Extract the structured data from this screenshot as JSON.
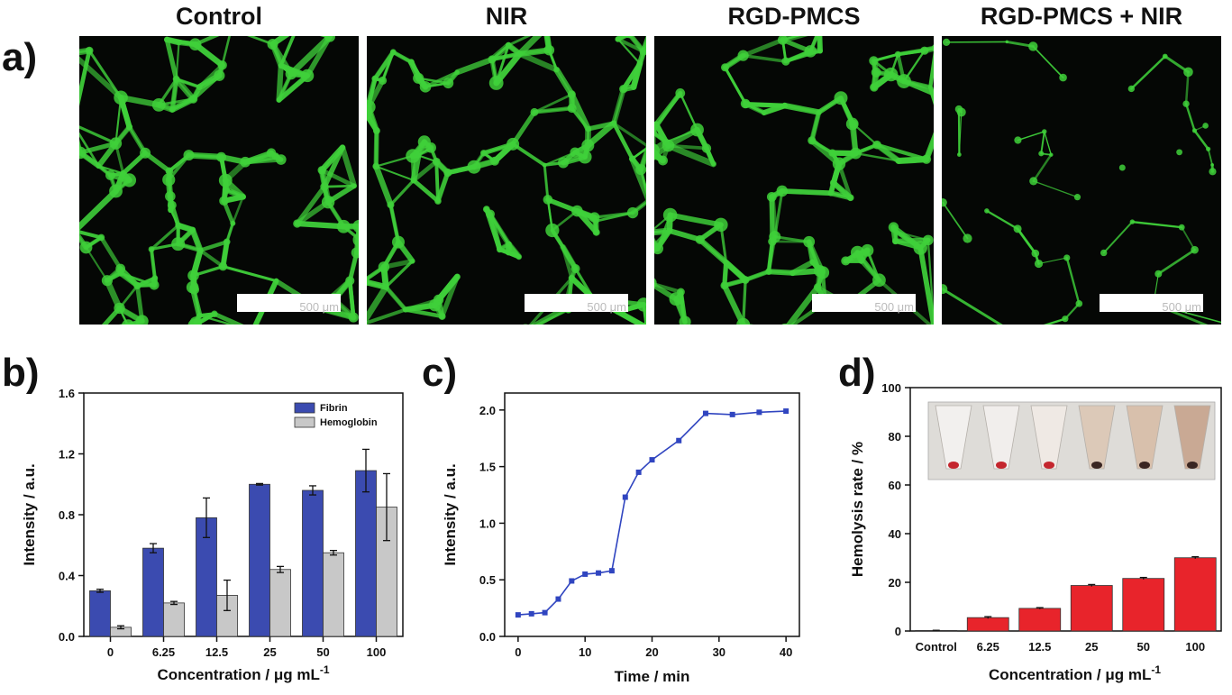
{
  "panel_labels": {
    "a": "a)",
    "b": "b)",
    "c": "c)",
    "d": "d)"
  },
  "micrographs": [
    {
      "title": "Control",
      "scale_text": "500 μm",
      "density": 1.0
    },
    {
      "title": "NIR",
      "scale_text": "500 μm",
      "density": 0.95
    },
    {
      "title": "RGD-PMCS",
      "scale_text": "500 μm",
      "density": 0.98
    },
    {
      "title": "RGD-PMCS + NIR",
      "scale_text": "500 μm",
      "density": 0.35
    }
  ],
  "colors": {
    "fibrin": "#3b4bb0",
    "hemoglobin": "#c8c8c8",
    "line": "#3045c0",
    "hemolysis": "#e8242b",
    "fluorescence": "#3fd03a"
  },
  "chart_data": [
    {
      "type": "bar",
      "panel": "b",
      "categories": [
        "0",
        "6.25",
        "12.5",
        "25",
        "50",
        "100"
      ],
      "series": [
        {
          "name": "Fibrin",
          "values": [
            0.3,
            0.58,
            0.78,
            1.0,
            0.96,
            1.09
          ],
          "errors": [
            0.01,
            0.03,
            0.13,
            0.005,
            0.03,
            0.14
          ]
        },
        {
          "name": "Hemoglobin",
          "values": [
            0.06,
            0.22,
            0.27,
            0.44,
            0.55,
            0.85
          ],
          "errors": [
            0.01,
            0.01,
            0.1,
            0.02,
            0.015,
            0.22
          ]
        }
      ],
      "xlabel": "Concentration / μg mL",
      "xlabel_sup": "-1",
      "ylabel": "Intensity / a.u.",
      "ylim": [
        0,
        1.6
      ],
      "yticks": [
        "0.0",
        "0.4",
        "0.8",
        "1.2",
        "1.6"
      ],
      "legend": "top-right"
    },
    {
      "type": "line",
      "panel": "c",
      "x": [
        0,
        2,
        4,
        6,
        8,
        10,
        12,
        14,
        16,
        18,
        20,
        24,
        28,
        32,
        36,
        40
      ],
      "y": [
        0.19,
        0.2,
        0.21,
        0.33,
        0.49,
        0.55,
        0.56,
        0.58,
        1.23,
        1.45,
        1.56,
        1.73,
        1.97,
        1.96,
        1.98,
        1.99
      ],
      "xlabel": "Time / min",
      "ylabel": "Intensity / a.u.",
      "xlim": [
        -2,
        42
      ],
      "ylim": [
        0,
        2.15
      ],
      "xticks": [
        "0",
        "10",
        "20",
        "30",
        "40"
      ],
      "yticks": [
        "0.0",
        "0.5",
        "1.0",
        "1.5",
        "2.0"
      ]
    },
    {
      "type": "bar",
      "panel": "d",
      "categories": [
        "Control",
        "6.25",
        "12.5",
        "25",
        "50",
        "100"
      ],
      "values": [
        0.2,
        5.5,
        9.3,
        18.7,
        21.6,
        30.1
      ],
      "errors": [
        0.1,
        0.4,
        0.3,
        0.4,
        0.4,
        0.4
      ],
      "xlabel": "Concentration / μg mL",
      "xlabel_sup": "-1",
      "ylabel": "Hemolysis rate / %",
      "ylim": [
        0,
        100
      ],
      "yticks": [
        "0",
        "20",
        "40",
        "60",
        "80",
        "100"
      ]
    }
  ]
}
